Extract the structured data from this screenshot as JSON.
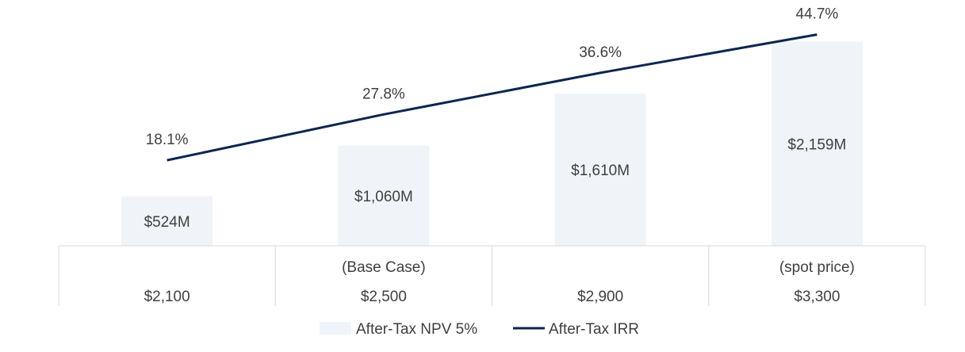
{
  "chart_data": {
    "type": "bar",
    "categories": [
      "$2,100",
      "$2,500",
      "$2,900",
      "$3,300"
    ],
    "category_notes": [
      "",
      "(Base Case)",
      "",
      "(spot price)"
    ],
    "series": [
      {
        "name": "After-Tax NPV 5%",
        "type": "bar",
        "axis": "left",
        "values": [
          524,
          1060,
          1610,
          2159
        ],
        "value_labels": [
          "$524M",
          "$1,060M",
          "$1,610M",
          "$2,159M"
        ],
        "color": "#f0f3f8"
      },
      {
        "name": "After-Tax IRR",
        "type": "line",
        "axis": "right",
        "values": [
          18.1,
          27.8,
          36.6,
          44.7
        ],
        "value_labels": [
          "18.1%",
          "27.8%",
          "36.6%",
          "44.7%"
        ],
        "color": "#0d2650"
      }
    ],
    "ylim_left": [
      0,
      2500
    ],
    "ylim_right": [
      0,
      50
    ],
    "legend_position": "bottom",
    "grid": false
  }
}
